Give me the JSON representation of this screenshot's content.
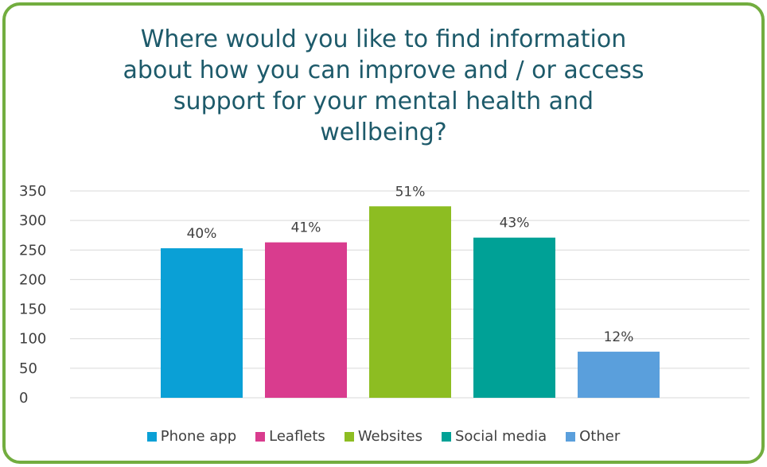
{
  "chart_data": {
    "type": "bar",
    "title": "Where would you like to find information about how you can improve and / or access support for your mental health and wellbeing?",
    "title_lines": [
      "Where would you like to find information",
      "about how you can improve and / or access",
      "support for your mental health and",
      "wellbeing?"
    ],
    "categories": [
      "Phone app",
      "Leaflets",
      "Websites",
      "Social media",
      "Other"
    ],
    "values": [
      253,
      263,
      324,
      271,
      78
    ],
    "data_labels": [
      "40%",
      "41%",
      "51%",
      "43%",
      "12%"
    ],
    "colors": [
      "#0aa0d6",
      "#d93c8e",
      "#8dbd22",
      "#00a196",
      "#5a9fdc"
    ],
    "ylim": [
      0,
      350
    ],
    "yticks": [
      0,
      50,
      100,
      150,
      200,
      250,
      300,
      350
    ],
    "xlabel": "",
    "ylabel": "",
    "grid": true,
    "legend_position": "bottom"
  },
  "style": {
    "border_color": "#72ad3f",
    "title_color": "#1d5a6a",
    "gridline_color": "#d9d9d9"
  }
}
